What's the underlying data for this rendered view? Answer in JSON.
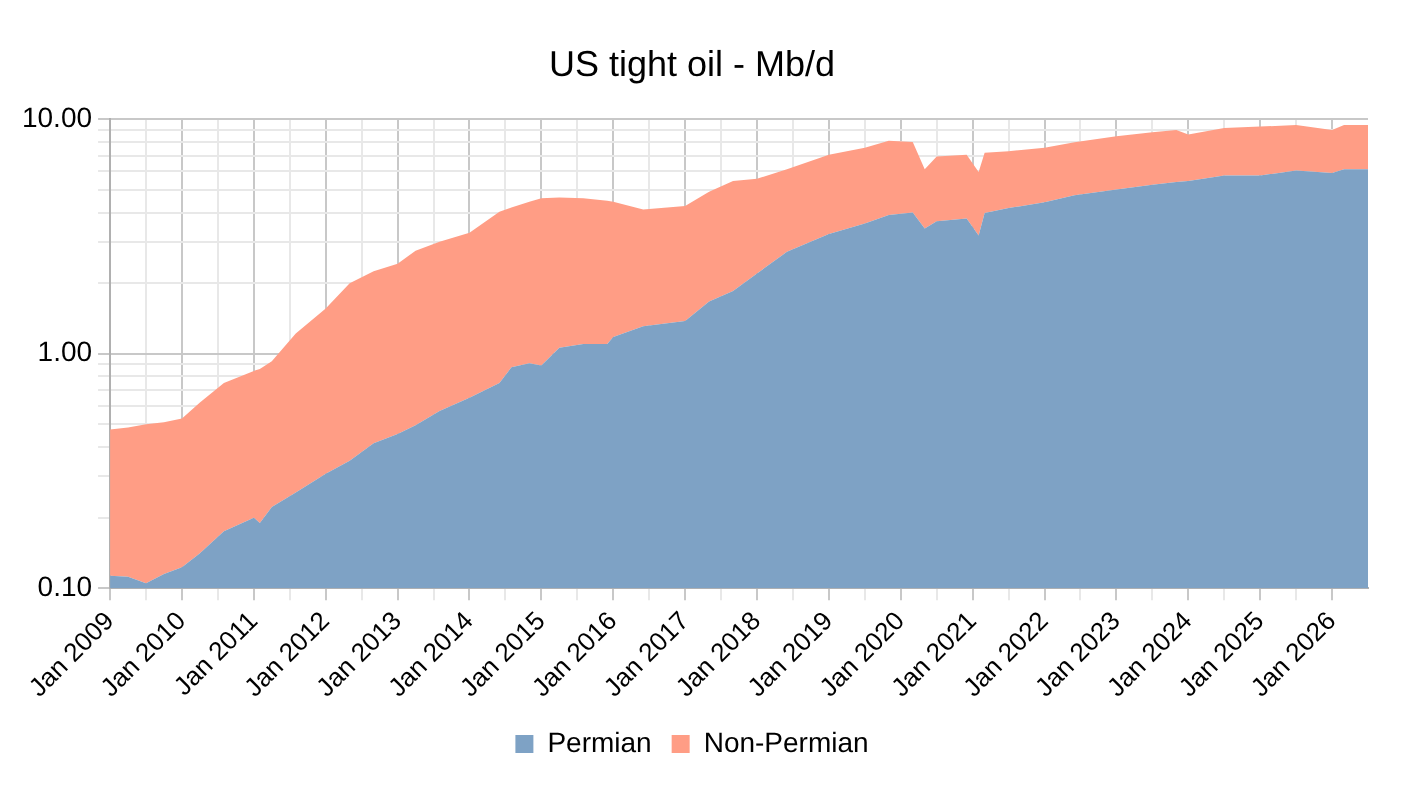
{
  "chart_data": {
    "type": "area",
    "title": "US tight oil - Mb/d",
    "stacked": true,
    "log": "y",
    "grid": true,
    "legend": "bottom",
    "x": [
      "2009-01",
      "2009-04",
      "2009-07",
      "2009-10",
      "2010-01",
      "2010-04",
      "2010-08",
      "2011-01",
      "2011-02",
      "2011-04",
      "2011-08",
      "2012-01",
      "2012-05",
      "2012-09",
      "2013-01",
      "2013-04",
      "2013-08",
      "2014-01",
      "2014-06",
      "2014-08",
      "2014-11",
      "2015-01",
      "2015-04",
      "2015-08",
      "2015-12",
      "2016-01",
      "2016-06",
      "2017-01",
      "2017-05",
      "2017-09",
      "2018-01",
      "2018-06",
      "2019-01",
      "2019-07",
      "2019-11",
      "2020-03",
      "2020-05",
      "2020-07",
      "2020-12",
      "2021-02",
      "2021-03",
      "2021-07",
      "2022-01",
      "2022-06",
      "2023-01",
      "2023-07",
      "2023-11",
      "2024-01",
      "2024-07",
      "2025-01",
      "2025-07",
      "2026-01",
      "2026-03",
      "2026-07"
    ],
    "series": [
      {
        "name": "Permian",
        "color": "#7ea2c5",
        "values": [
          0.113,
          0.112,
          0.105,
          0.115,
          0.123,
          0.141,
          0.175,
          0.2,
          0.19,
          0.222,
          0.256,
          0.308,
          0.35,
          0.415,
          0.455,
          0.495,
          0.57,
          0.65,
          0.75,
          0.875,
          0.91,
          0.89,
          1.06,
          1.1,
          1.1,
          1.18,
          1.31,
          1.38,
          1.67,
          1.85,
          2.2,
          2.72,
          3.24,
          3.59,
          3.9,
          4.0,
          3.42,
          3.67,
          3.77,
          3.19,
          3.98,
          4.18,
          4.42,
          4.74,
          5.02,
          5.26,
          5.4,
          5.45,
          5.75,
          5.75,
          6.05,
          5.9,
          6.12,
          6.12
        ]
      },
      {
        "name": "Non-Permian",
        "color": "#ff9d85",
        "values": [
          0.362,
          0.373,
          0.395,
          0.395,
          0.407,
          0.479,
          0.575,
          0.645,
          0.67,
          0.708,
          0.964,
          1.252,
          1.65,
          1.835,
          1.965,
          2.255,
          2.43,
          2.63,
          3.28,
          3.325,
          3.54,
          3.71,
          3.58,
          3.5,
          3.39,
          3.27,
          2.81,
          2.89,
          3.24,
          3.6,
          3.37,
          3.4,
          3.81,
          3.96,
          4.19,
          4.0,
          2.7,
          3.26,
          3.28,
          2.77,
          3.21,
          3.12,
          3.13,
          3.24,
          3.43,
          3.54,
          3.6,
          3.15,
          3.43,
          3.55,
          3.39,
          3.1,
          3.32,
          3.32
        ]
      }
    ],
    "ylim": [
      0.1,
      10
    ],
    "yticks": [
      {
        "value": 0.1,
        "label": "0.10"
      },
      {
        "value": 0.2,
        "label": null
      },
      {
        "value": 0.3,
        "label": null
      },
      {
        "value": 0.4,
        "label": null
      },
      {
        "value": 0.5,
        "label": null
      },
      {
        "value": 0.6,
        "label": null
      },
      {
        "value": 0.7,
        "label": null
      },
      {
        "value": 0.8,
        "label": null
      },
      {
        "value": 0.9,
        "label": null
      },
      {
        "value": 1,
        "label": "1.00"
      },
      {
        "value": 2,
        "label": null
      },
      {
        "value": 3,
        "label": null
      },
      {
        "value": 4,
        "label": null
      },
      {
        "value": 5,
        "label": null
      },
      {
        "value": 6,
        "label": null
      },
      {
        "value": 7,
        "label": null
      },
      {
        "value": 8,
        "label": null
      },
      {
        "value": 9,
        "label": null
      },
      {
        "value": 10,
        "label": "10.00"
      }
    ],
    "xlim": [
      "2009-01",
      "2026-07"
    ],
    "xticks": [
      {
        "value": "2009-01",
        "label": "Jan 2009"
      },
      {
        "value": "2009-07",
        "label": null
      },
      {
        "value": "2010-01",
        "label": "Jan 2010"
      },
      {
        "value": "2010-07",
        "label": null
      },
      {
        "value": "2011-01",
        "label": "Jan 2011"
      },
      {
        "value": "2011-07",
        "label": null
      },
      {
        "value": "2012-01",
        "label": "Jan 2012"
      },
      {
        "value": "2012-07",
        "label": null
      },
      {
        "value": "2013-01",
        "label": "Jan 2013"
      },
      {
        "value": "2013-07",
        "label": null
      },
      {
        "value": "2014-01",
        "label": "Jan 2014"
      },
      {
        "value": "2014-07",
        "label": null
      },
      {
        "value": "2015-01",
        "label": "Jan 2015"
      },
      {
        "value": "2015-07",
        "label": null
      },
      {
        "value": "2016-01",
        "label": "Jan 2016"
      },
      {
        "value": "2016-07",
        "label": null
      },
      {
        "value": "2017-01",
        "label": "Jan 2017"
      },
      {
        "value": "2017-07",
        "label": null
      },
      {
        "value": "2018-01",
        "label": "Jan 2018"
      },
      {
        "value": "2018-07",
        "label": null
      },
      {
        "value": "2019-01",
        "label": "Jan 2019"
      },
      {
        "value": "2019-07",
        "label": null
      },
      {
        "value": "2020-01",
        "label": "Jan 2020"
      },
      {
        "value": "2020-07",
        "label": null
      },
      {
        "value": "2021-01",
        "label": "Jan 2021"
      },
      {
        "value": "2021-07",
        "label": null
      },
      {
        "value": "2022-01",
        "label": "Jan 2022"
      },
      {
        "value": "2022-07",
        "label": null
      },
      {
        "value": "2023-01",
        "label": "Jan 2023"
      },
      {
        "value": "2023-07",
        "label": null
      },
      {
        "value": "2024-01",
        "label": "Jan 2024"
      },
      {
        "value": "2024-07",
        "label": null
      },
      {
        "value": "2025-01",
        "label": "Jan 2025"
      },
      {
        "value": "2025-07",
        "label": null
      },
      {
        "value": "2026-01",
        "label": "Jan 2026"
      }
    ]
  }
}
